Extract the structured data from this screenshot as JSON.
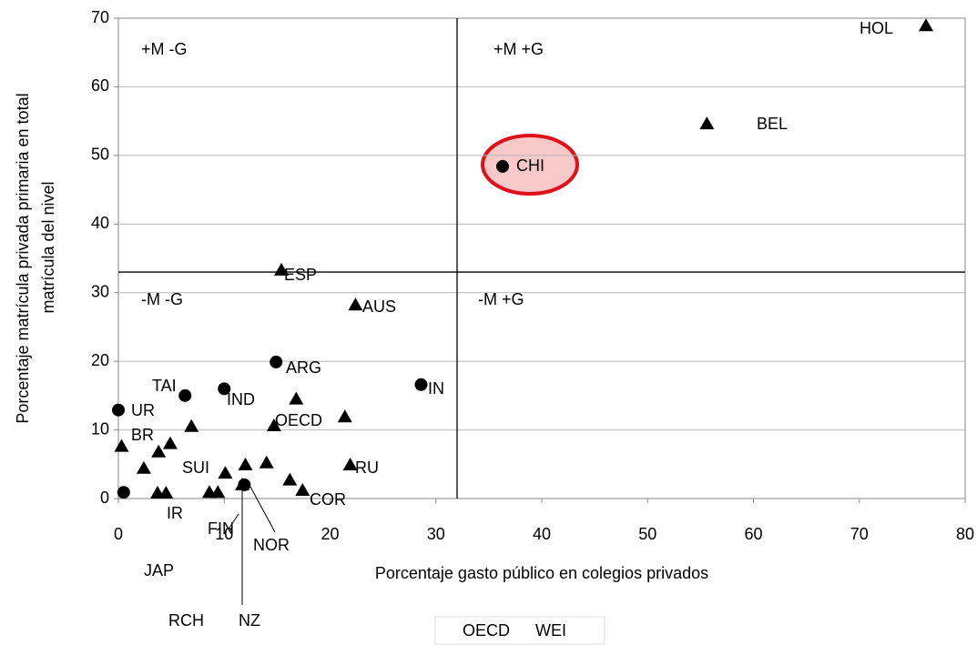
{
  "chart_data": {
    "type": "scatter",
    "xlabel": "Porcentaje gasto público en colegios privados",
    "ylabel": [
      "Porcentaje matrícula privada primaria en total",
      "matrícula del nivel"
    ],
    "xlim": [
      0,
      80
    ],
    "xticks": [
      0,
      10,
      20,
      30,
      40,
      50,
      60,
      70,
      80
    ],
    "ylim": [
      0,
      70
    ],
    "yticks": [
      0,
      10,
      20,
      30,
      40,
      50,
      60,
      70
    ],
    "grid": true,
    "reference_lines": {
      "x": 32,
      "y": 33
    },
    "quadrant_labels": [
      "+M -G",
      "+M +G",
      "-M -G",
      "-M +G"
    ],
    "point_labels": [
      "HOL",
      "BEL",
      "CHI",
      "ESP",
      "AUS",
      "ARG",
      "IN",
      "TAI",
      "IND",
      "UR",
      "OECD",
      "BR",
      "RU",
      "SUI",
      "COR",
      "IR",
      "FIN",
      "NOR",
      "JAP",
      "RCH",
      "NZ"
    ],
    "legend": "bottom",
    "series": [
      {
        "name": "OECD",
        "color": "#000000",
        "marker": "triangle",
        "x": [
          76.3,
          55.6,
          15.4,
          22.4,
          14.7,
          16.8,
          21.4,
          21.9,
          6.9,
          4.9,
          3.8,
          0.3,
          2.4,
          3.7,
          4.5,
          8.6,
          9.4,
          10.1,
          12.0,
          14.0,
          11.7,
          16.2,
          17.4
        ],
        "y": [
          68.9,
          54.6,
          33.3,
          28.2,
          10.6,
          14.5,
          11.9,
          4.9,
          10.5,
          8.0,
          6.8,
          7.6,
          4.4,
          0.8,
          0.8,
          0.9,
          0.9,
          3.7,
          4.9,
          5.2,
          2.0,
          2.7,
          1.2
        ]
      },
      {
        "name": "WEI",
        "color": "#000000",
        "marker": "circle",
        "x": [
          36.3,
          28.6,
          14.9,
          10.0,
          6.3,
          0.0,
          0.5,
          11.9
        ],
        "y": [
          48.4,
          16.6,
          19.9,
          16.0,
          15.0,
          12.9,
          0.9,
          2.0
        ]
      }
    ]
  }
}
